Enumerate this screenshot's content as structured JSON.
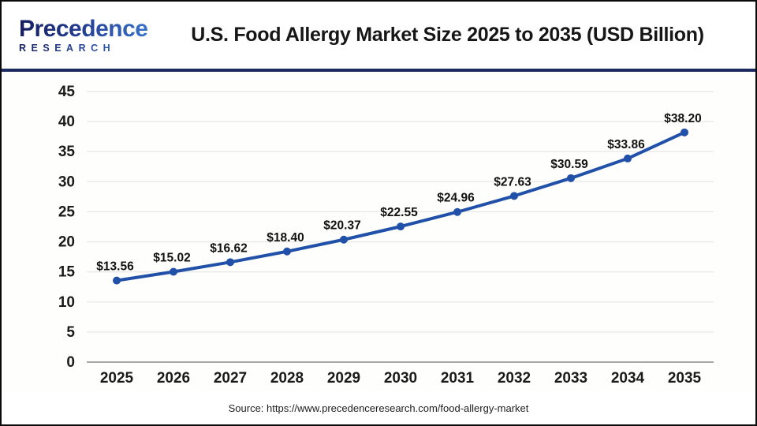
{
  "logo": {
    "brand": "Precedence",
    "sub": "RESEARCH"
  },
  "header": {
    "title": "U.S. Food Allergy Market Size 2025 to 2035 (USD Billion)"
  },
  "chart_data": {
    "type": "line",
    "title": "U.S. Food Allergy Market Size 2025 to 2035 (USD Billion)",
    "categories": [
      "2025",
      "2026",
      "2027",
      "2028",
      "2029",
      "2030",
      "2031",
      "2032",
      "2033",
      "2034",
      "2035"
    ],
    "values": [
      13.56,
      15.02,
      16.62,
      18.4,
      20.37,
      22.55,
      24.96,
      27.63,
      30.59,
      33.86,
      38.2
    ],
    "point_labels": [
      "$13.56",
      "$15.02",
      "$16.62",
      "$18.40",
      "$20.37",
      "$22.55",
      "$24.96",
      "$27.63",
      "$30.59",
      "$33.86",
      "$38.20"
    ],
    "yticks": [
      0,
      5,
      10,
      15,
      20,
      25,
      30,
      35,
      40,
      45
    ],
    "ylim": [
      0,
      45
    ],
    "xlabel": "",
    "ylabel": "",
    "grid": true,
    "legend": "none",
    "line_color": "#2150a8",
    "marker_color": "#2150a8",
    "grid_color": "#e9e9e9",
    "axis_color": "#a8a8a8",
    "tick_color": "#1a1a1a",
    "label_color": "#111111"
  },
  "footer": {
    "source": "Source: https://www.precedenceresearch.com/food-allergy-market"
  }
}
